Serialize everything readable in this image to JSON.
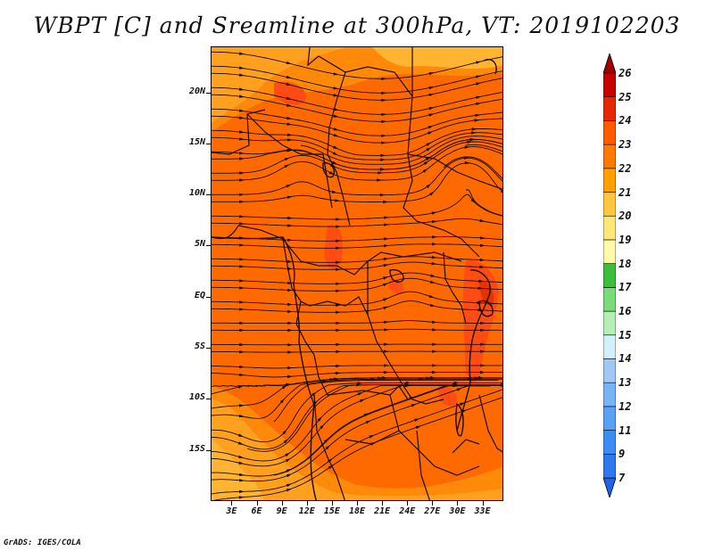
{
  "title": "WBPT [C] and Sreamline at 300hPa, VT: 2019102203",
  "credit": "GrADS: IGES/COLA",
  "map": {
    "lat_ticks": [
      {
        "label": "20N",
        "value": 20
      },
      {
        "label": "15N",
        "value": 15
      },
      {
        "label": "10N",
        "value": 10
      },
      {
        "label": "5N",
        "value": 5
      },
      {
        "label": "EQ",
        "value": 0
      },
      {
        "label": "5S",
        "value": -5
      },
      {
        "label": "10S",
        "value": -10
      },
      {
        "label": "15S",
        "value": -15
      }
    ],
    "lon_ticks": [
      {
        "label": "3E",
        "value": 3
      },
      {
        "label": "6E",
        "value": 6
      },
      {
        "label": "9E",
        "value": 9
      },
      {
        "label": "12E",
        "value": 12
      },
      {
        "label": "15E",
        "value": 15
      },
      {
        "label": "18E",
        "value": 18
      },
      {
        "label": "21E",
        "value": 21
      },
      {
        "label": "24E",
        "value": 24
      },
      {
        "label": "27E",
        "value": 27
      },
      {
        "label": "30E",
        "value": 30
      },
      {
        "label": "33E",
        "value": 33
      }
    ],
    "lat_range": [
      -20,
      24.5
    ],
    "lon_range": [
      0.5,
      35.5
    ]
  },
  "colorbar": {
    "labels": [
      "7",
      "9",
      "11",
      "12",
      "13",
      "14",
      "15",
      "16",
      "17",
      "18",
      "19",
      "20",
      "21",
      "22",
      "23",
      "24",
      "25",
      "26"
    ],
    "colors": [
      "#1e64e6",
      "#2d78f0",
      "#3c8cf5",
      "#5aa0f5",
      "#78b4f5",
      "#a0c8f5",
      "#d2f0fa",
      "#b4f0b4",
      "#78dc78",
      "#3cbe3c",
      "#fffaaa",
      "#ffe678",
      "#ffc83c",
      "#ffa000",
      "#ff7800",
      "#ff5a00",
      "#e62800",
      "#c80000",
      "#a00000"
    ],
    "top_color": "#a00000",
    "bottom_color": "#1e64e6"
  },
  "colors": {
    "field_base": "#ff6a00",
    "field_warm": "#ff4c14",
    "field_cool": "#ffa01e",
    "field_mid": "#ff8a0a"
  }
}
